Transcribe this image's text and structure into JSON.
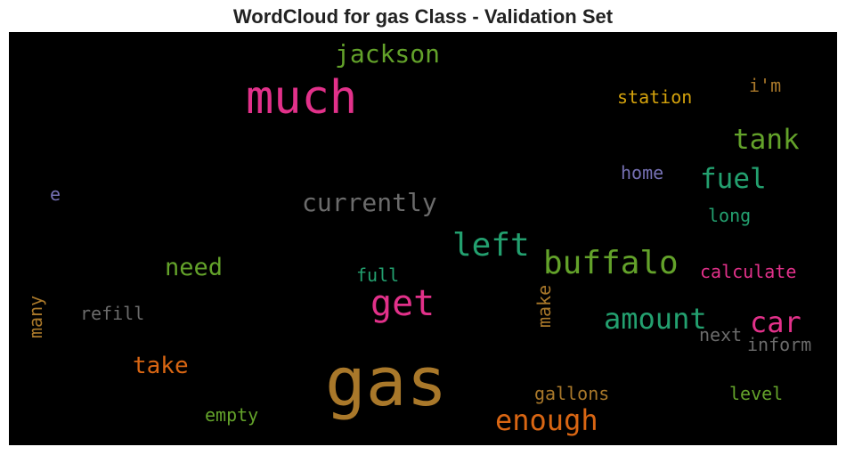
{
  "chart_data": {
    "type": "wordcloud",
    "title": "WordCloud for gas Class - Validation Set",
    "background": "#000000",
    "words": [
      {
        "text": "gas",
        "color": "#A9782A",
        "vertical": false
      },
      {
        "text": "much",
        "color": "#E2318A",
        "vertical": false
      },
      {
        "text": "get",
        "color": "#E2318A",
        "vertical": false
      },
      {
        "text": "buffalo",
        "color": "#63A22A",
        "vertical": false
      },
      {
        "text": "left",
        "color": "#23A06F",
        "vertical": false
      },
      {
        "text": "enough",
        "color": "#D96613",
        "vertical": false
      },
      {
        "text": "amount",
        "color": "#23A06F",
        "vertical": false
      },
      {
        "text": "car",
        "color": "#E2318A",
        "vertical": false
      },
      {
        "text": "jackson",
        "color": "#63A22A",
        "vertical": false
      },
      {
        "text": "tank",
        "color": "#63A22A",
        "vertical": false
      },
      {
        "text": "currently",
        "color": "#6B6B6B",
        "vertical": false
      },
      {
        "text": "fuel",
        "color": "#23A06F",
        "vertical": false
      },
      {
        "text": "need",
        "color": "#63A22A",
        "vertical": false
      },
      {
        "text": "take",
        "color": "#D96613",
        "vertical": false
      },
      {
        "text": "station",
        "color": "#D4A20C",
        "vertical": false
      },
      {
        "text": "i'm",
        "color": "#A9782A",
        "vertical": false
      },
      {
        "text": "home",
        "color": "#7570B3",
        "vertical": false
      },
      {
        "text": "long",
        "color": "#23A06F",
        "vertical": false
      },
      {
        "text": "calculate",
        "color": "#E2318A",
        "vertical": false
      },
      {
        "text": "full",
        "color": "#23A06F",
        "vertical": false
      },
      {
        "text": "refill",
        "color": "#6B6B6B",
        "vertical": false
      },
      {
        "text": "many",
        "color": "#A9782A",
        "vertical": true
      },
      {
        "text": "make",
        "color": "#A9782A",
        "vertical": true
      },
      {
        "text": "next",
        "color": "#6B6B6B",
        "vertical": false
      },
      {
        "text": "inform",
        "color": "#6B6B6B",
        "vertical": false
      },
      {
        "text": "gallons",
        "color": "#A9782A",
        "vertical": false
      },
      {
        "text": "level",
        "color": "#63A22A",
        "vertical": false
      },
      {
        "text": "empty",
        "color": "#63A22A",
        "vertical": false
      },
      {
        "text": "e",
        "color": "#7570B3",
        "vertical": false
      }
    ]
  }
}
